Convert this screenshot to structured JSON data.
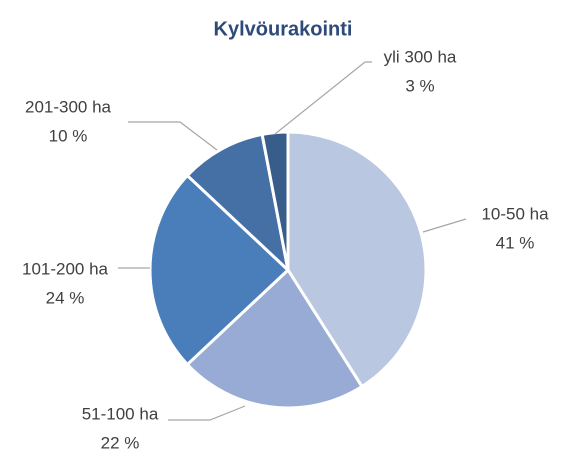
{
  "chart_data": {
    "type": "pie",
    "title": "Kylvöurakointi",
    "categories": [
      "10-50 ha",
      "51-100 ha",
      "101-200 ha",
      "201-300 ha",
      "yli 300 ha"
    ],
    "values": [
      41,
      22,
      24,
      10,
      3
    ],
    "value_labels": [
      "41 %",
      "22 %",
      "24 %",
      "10 %",
      "3 %"
    ],
    "colors": [
      "#b9c7e1",
      "#97abd4",
      "#4a7ebb",
      "#4470a5",
      "#385d8a"
    ]
  }
}
